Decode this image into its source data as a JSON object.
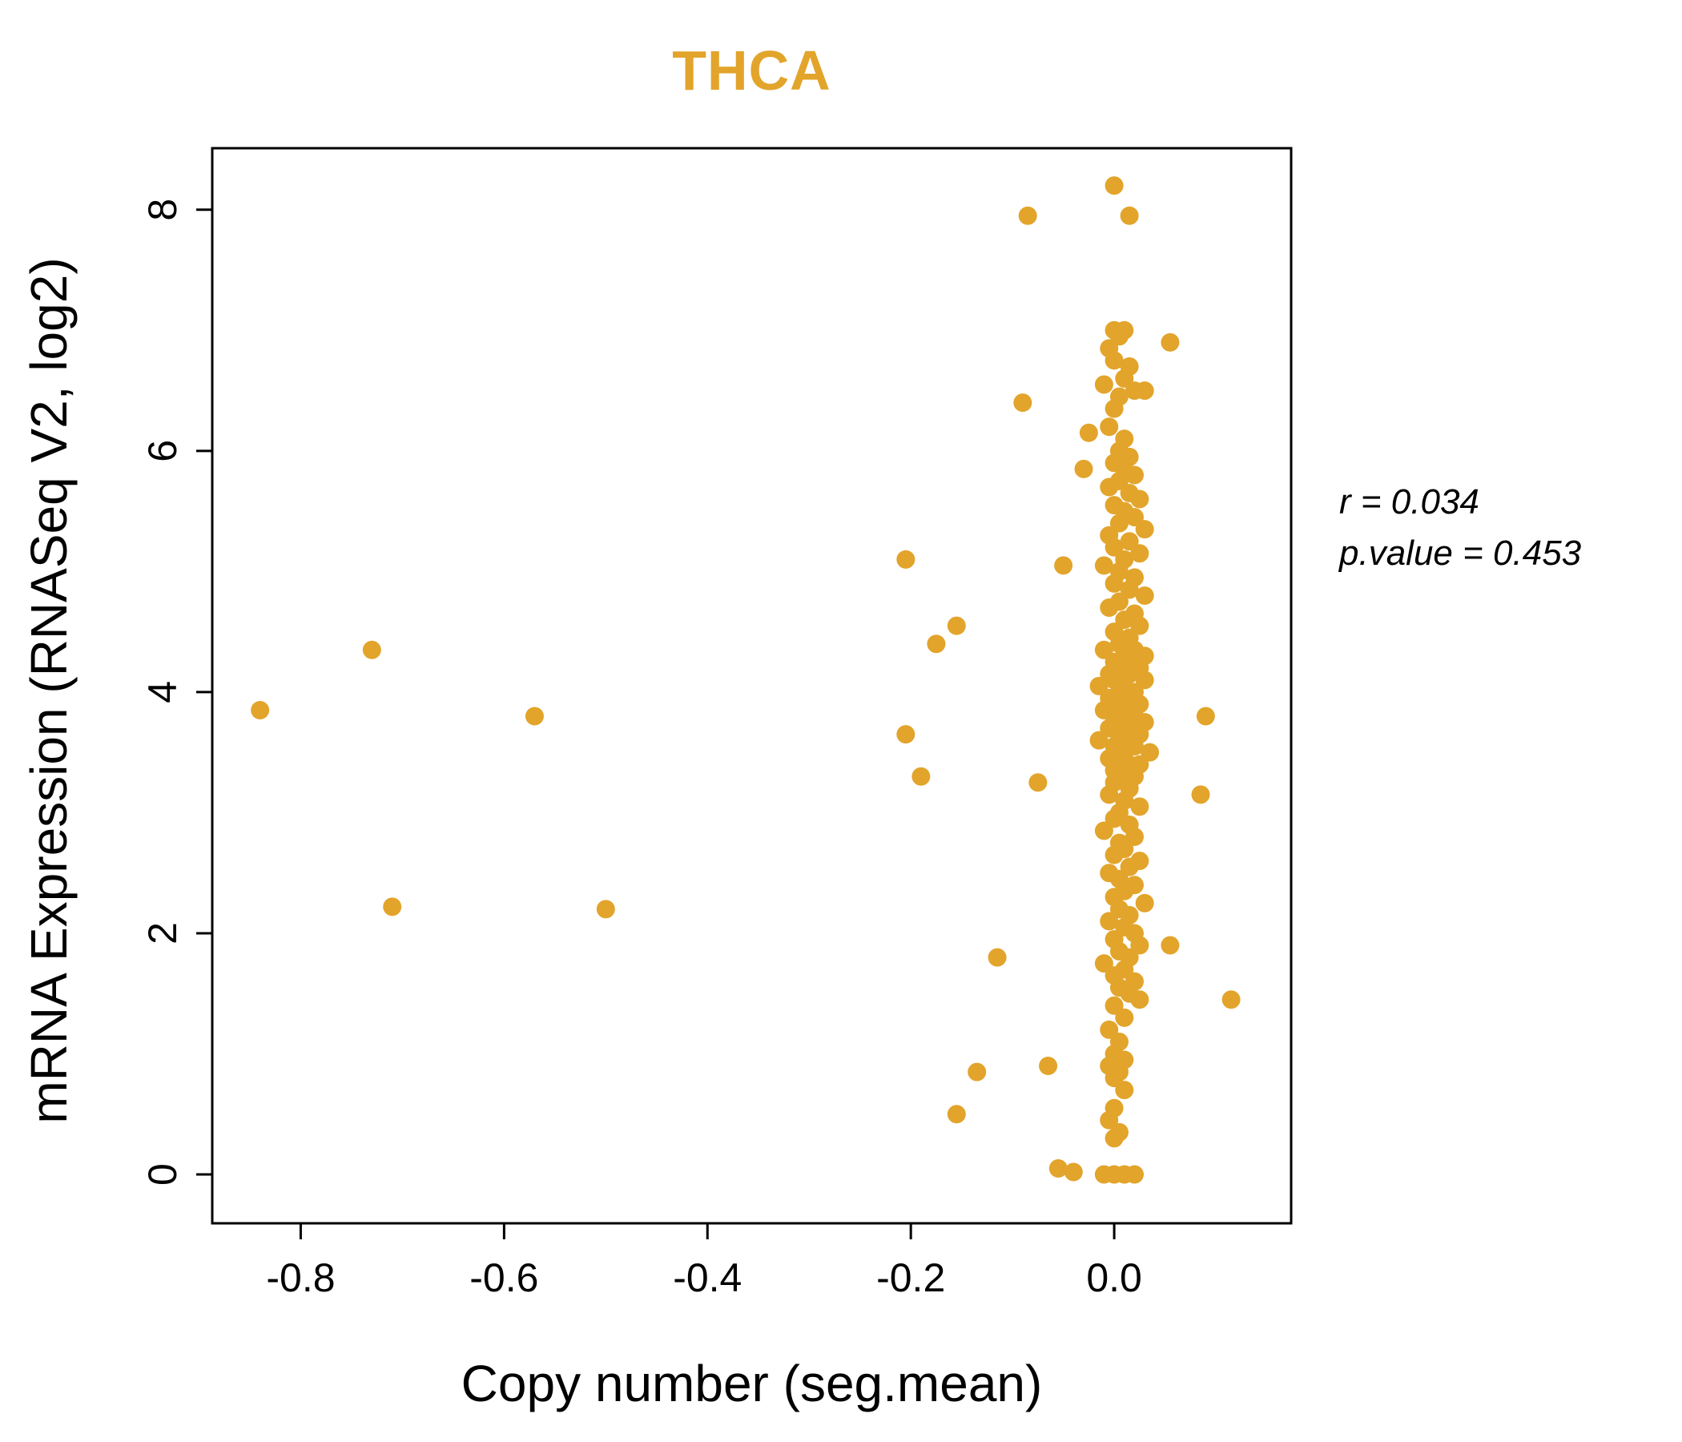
{
  "title": "THCA",
  "accent_color": "#E2A42B",
  "annotation": {
    "line1": "r = 0.034",
    "line2": "p.value = 0.453"
  },
  "chart_data": {
    "type": "scatter",
    "title": "THCA",
    "xlabel": "Copy number (seg.mean)",
    "ylabel": "mRNA Expression (RNASeq V2, log2)",
    "xlim": [
      -0.887,
      0.174
    ],
    "ylim": [
      -0.405,
      8.51
    ],
    "x_tick_values": [
      -0.8,
      -0.6,
      -0.4,
      -0.2,
      0.0
    ],
    "x_tick_labels": [
      "-0.8",
      "-0.6",
      "-0.4",
      "-0.2",
      "0.0"
    ],
    "y_tick_values": [
      0,
      2,
      4,
      6,
      8
    ],
    "y_tick_labels": [
      "0",
      "2",
      "4",
      "6",
      "8"
    ],
    "grid": false,
    "legend": "none",
    "point_color": "#E2A42B",
    "r": 0.034,
    "p_value": 0.453,
    "points": [
      [
        -0.84,
        3.85
      ],
      [
        -0.73,
        4.35
      ],
      [
        -0.71,
        2.22
      ],
      [
        -0.57,
        3.8
      ],
      [
        -0.5,
        2.2
      ],
      [
        -0.205,
        5.1
      ],
      [
        -0.205,
        3.65
      ],
      [
        -0.19,
        3.3
      ],
      [
        -0.175,
        4.4
      ],
      [
        -0.155,
        4.55
      ],
      [
        -0.155,
        0.5
      ],
      [
        -0.135,
        0.85
      ],
      [
        -0.115,
        1.8
      ],
      [
        -0.085,
        7.95
      ],
      [
        -0.09,
        6.4
      ],
      [
        -0.075,
        3.25
      ],
      [
        -0.065,
        0.9
      ],
      [
        -0.05,
        5.05
      ],
      [
        -0.055,
        0.05
      ],
      [
        -0.04,
        0.02
      ],
      [
        -0.03,
        5.85
      ],
      [
        -0.025,
        6.15
      ],
      [
        0.055,
        6.9
      ],
      [
        0.09,
        3.8
      ],
      [
        0.085,
        3.15
      ],
      [
        0.115,
        1.45
      ],
      [
        0.055,
        1.9
      ],
      [
        0.0,
        8.2
      ],
      [
        0.015,
        7.95
      ],
      [
        0.0,
        7.0
      ],
      [
        0.01,
        7.0
      ],
      [
        0.005,
        6.95
      ],
      [
        -0.005,
        6.85
      ],
      [
        0.0,
        6.75
      ],
      [
        0.015,
        6.7
      ],
      [
        0.01,
        6.6
      ],
      [
        -0.01,
        6.55
      ],
      [
        0.02,
        6.5
      ],
      [
        0.03,
        6.5
      ],
      [
        0.005,
        6.45
      ],
      [
        0.0,
        6.35
      ],
      [
        -0.005,
        6.2
      ],
      [
        0.01,
        6.1
      ],
      [
        0.005,
        6.0
      ],
      [
        0.015,
        5.95
      ],
      [
        0.0,
        5.9
      ],
      [
        0.01,
        5.85
      ],
      [
        0.02,
        5.8
      ],
      [
        0.005,
        5.75
      ],
      [
        -0.005,
        5.7
      ],
      [
        0.015,
        5.65
      ],
      [
        0.025,
        5.6
      ],
      [
        0.0,
        5.55
      ],
      [
        0.01,
        5.5
      ],
      [
        0.02,
        5.45
      ],
      [
        0.005,
        5.4
      ],
      [
        0.03,
        5.35
      ],
      [
        -0.005,
        5.3
      ],
      [
        0.015,
        5.25
      ],
      [
        0.0,
        5.2
      ],
      [
        0.025,
        5.15
      ],
      [
        0.01,
        5.1
      ],
      [
        -0.01,
        5.05
      ],
      [
        0.005,
        5.0
      ],
      [
        0.02,
        4.95
      ],
      [
        0.0,
        4.9
      ],
      [
        0.015,
        4.85
      ],
      [
        0.03,
        4.8
      ],
      [
        0.005,
        4.75
      ],
      [
        -0.005,
        4.7
      ],
      [
        0.02,
        4.65
      ],
      [
        0.01,
        4.6
      ],
      [
        0.025,
        4.55
      ],
      [
        0.0,
        4.5
      ],
      [
        0.015,
        4.45
      ],
      [
        0.005,
        4.4
      ],
      [
        -0.01,
        4.35
      ],
      [
        0.02,
        4.35
      ],
      [
        0.01,
        4.3
      ],
      [
        0.03,
        4.3
      ],
      [
        0.0,
        4.25
      ],
      [
        0.02,
        4.25
      ],
      [
        0.005,
        4.2
      ],
      [
        0.025,
        4.2
      ],
      [
        -0.005,
        4.15
      ],
      [
        0.015,
        4.15
      ],
      [
        0.0,
        4.1
      ],
      [
        0.03,
        4.1
      ],
      [
        0.01,
        4.05
      ],
      [
        -0.015,
        4.05
      ],
      [
        0.005,
        4.0
      ],
      [
        0.02,
        4.0
      ],
      [
        -0.005,
        3.95
      ],
      [
        0.015,
        3.95
      ],
      [
        0.0,
        3.9
      ],
      [
        0.025,
        3.9
      ],
      [
        0.01,
        3.85
      ],
      [
        -0.01,
        3.85
      ],
      [
        0.005,
        3.8
      ],
      [
        0.02,
        3.8
      ],
      [
        0.0,
        3.75
      ],
      [
        0.03,
        3.75
      ],
      [
        0.015,
        3.7
      ],
      [
        -0.005,
        3.7
      ],
      [
        0.01,
        3.65
      ],
      [
        0.025,
        3.65
      ],
      [
        0.005,
        3.6
      ],
      [
        -0.015,
        3.6
      ],
      [
        0.0,
        3.55
      ],
      [
        0.02,
        3.55
      ],
      [
        0.01,
        3.5
      ],
      [
        0.035,
        3.5
      ],
      [
        0.005,
        3.45
      ],
      [
        -0.005,
        3.45
      ],
      [
        0.015,
        3.4
      ],
      [
        0.025,
        3.4
      ],
      [
        0.0,
        3.35
      ],
      [
        0.01,
        3.35
      ],
      [
        0.005,
        3.3
      ],
      [
        0.02,
        3.3
      ],
      [
        0.0,
        3.25
      ],
      [
        0.015,
        3.2
      ],
      [
        -0.005,
        3.15
      ],
      [
        0.01,
        3.1
      ],
      [
        0.025,
        3.05
      ],
      [
        0.005,
        3.0
      ],
      [
        0.0,
        2.95
      ],
      [
        0.015,
        2.9
      ],
      [
        -0.01,
        2.85
      ],
      [
        0.02,
        2.8
      ],
      [
        0.005,
        2.75
      ],
      [
        0.01,
        2.7
      ],
      [
        0.0,
        2.65
      ],
      [
        0.025,
        2.6
      ],
      [
        0.015,
        2.55
      ],
      [
        -0.005,
        2.5
      ],
      [
        0.005,
        2.45
      ],
      [
        0.02,
        2.4
      ],
      [
        0.01,
        2.35
      ],
      [
        0.0,
        2.3
      ],
      [
        0.03,
        2.25
      ],
      [
        0.005,
        2.2
      ],
      [
        0.015,
        2.15
      ],
      [
        -0.005,
        2.1
      ],
      [
        0.01,
        2.05
      ],
      [
        0.02,
        2.0
      ],
      [
        0.0,
        1.95
      ],
      [
        0.025,
        1.9
      ],
      [
        0.005,
        1.85
      ],
      [
        0.015,
        1.8
      ],
      [
        -0.01,
        1.75
      ],
      [
        0.01,
        1.7
      ],
      [
        0.0,
        1.65
      ],
      [
        0.02,
        1.6
      ],
      [
        0.005,
        1.55
      ],
      [
        0.015,
        1.5
      ],
      [
        0.025,
        1.45
      ],
      [
        0.0,
        1.4
      ],
      [
        0.01,
        1.3
      ],
      [
        -0.005,
        1.2
      ],
      [
        0.005,
        1.1
      ],
      [
        0.0,
        1.0
      ],
      [
        0.01,
        0.95
      ],
      [
        -0.005,
        0.9
      ],
      [
        0.005,
        0.85
      ],
      [
        0.0,
        0.8
      ],
      [
        0.01,
        0.7
      ],
      [
        0.0,
        0.55
      ],
      [
        -0.005,
        0.45
      ],
      [
        0.005,
        0.35
      ],
      [
        0.0,
        0.3
      ],
      [
        -0.01,
        0.0
      ],
      [
        0.0,
        0.0
      ],
      [
        0.01,
        0.0
      ],
      [
        0.02,
        0.0
      ]
    ]
  }
}
